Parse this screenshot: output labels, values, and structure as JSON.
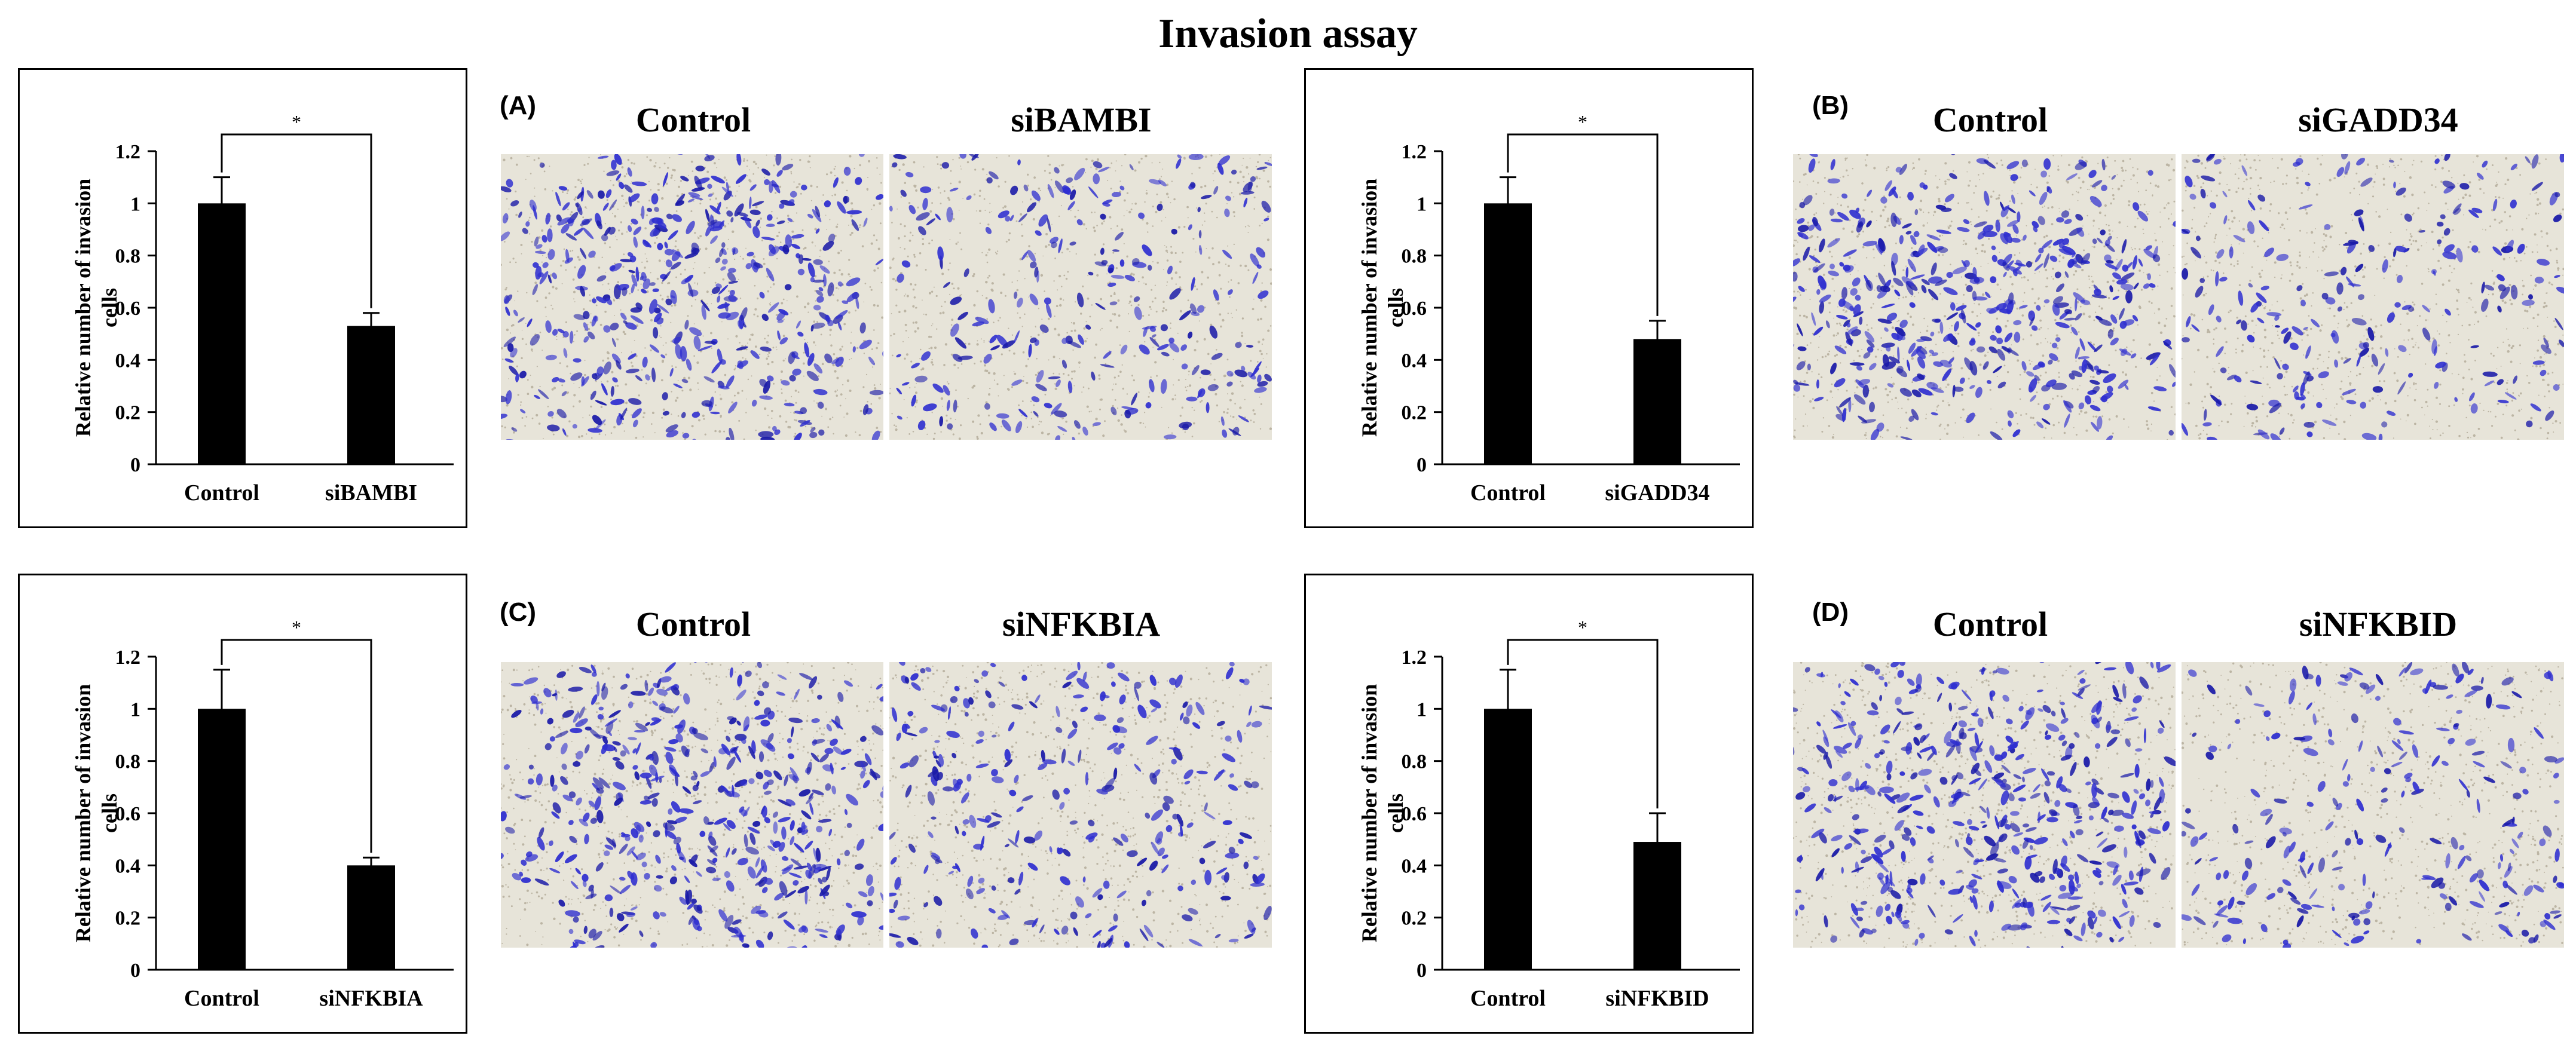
{
  "title": "Invasion assay",
  "colors": {
    "bar": "#000000",
    "cell_stain": "#2f2fd0",
    "cell_stain_dark": "#1a1aa8",
    "membrane": "#e7e4d9",
    "pore": "#9a8f7a"
  },
  "chart_data": [
    {
      "id": "A",
      "type": "bar",
      "categories": [
        "Control",
        "siBAMBI"
      ],
      "values": [
        1.0,
        0.53
      ],
      "errors": [
        0.1,
        0.05
      ],
      "ylabel": "Relative number of invasion cells",
      "ylabel_lines": [
        "Relative number of invasion",
        "cells"
      ],
      "ylim": [
        0,
        1.2
      ],
      "yticks": [
        0,
        0.2,
        0.4,
        0.6,
        0.8,
        1,
        1.2
      ],
      "annotation": "*"
    },
    {
      "id": "B",
      "type": "bar",
      "categories": [
        "Control",
        "siGADD34"
      ],
      "values": [
        1.0,
        0.48
      ],
      "errors": [
        0.1,
        0.07
      ],
      "ylabel": "Relative number of invasion cells",
      "ylabel_lines": [
        "Relative number of invasion",
        "cells"
      ],
      "ylim": [
        0,
        1.2
      ],
      "yticks": [
        0,
        0.2,
        0.4,
        0.6,
        0.8,
        1,
        1.2
      ],
      "annotation": "*"
    },
    {
      "id": "C",
      "type": "bar",
      "categories": [
        "Control",
        "siNFKBIA"
      ],
      "values": [
        1.0,
        0.4
      ],
      "errors": [
        0.15,
        0.03
      ],
      "ylabel": "Relative number of invasion cells",
      "ylabel_lines": [
        "Relative number of invasion",
        "cells"
      ],
      "ylim": [
        0,
        1.2
      ],
      "yticks": [
        0,
        0.2,
        0.4,
        0.6,
        0.8,
        1,
        1.2
      ],
      "annotation": "*"
    },
    {
      "id": "D",
      "type": "bar",
      "categories": [
        "Control",
        "siNFKBID"
      ],
      "values": [
        1.0,
        0.49
      ],
      "errors": [
        0.15,
        0.11
      ],
      "ylabel": "Relative number of invasion cells",
      "ylabel_lines": [
        "Relative number of invasion",
        "cells"
      ],
      "ylim": [
        0,
        1.2
      ],
      "yticks": [
        0,
        0.2,
        0.4,
        0.6,
        0.8,
        1,
        1.2
      ],
      "annotation": "*"
    }
  ],
  "panels": {
    "A": {
      "label": "(A)",
      "control_label": "Control",
      "treatment_label": "siBAMBI",
      "control_density": 1.0,
      "treatment_density": 0.5
    },
    "B": {
      "label": "(B)",
      "control_label": "Control",
      "treatment_label": "siGADD34",
      "control_density": 1.0,
      "treatment_density": 0.45
    },
    "C": {
      "label": "(C)",
      "control_label": "Control",
      "treatment_label": "siNFKBIA",
      "control_density": 1.0,
      "treatment_density": 0.55
    },
    "D": {
      "label": "(D)",
      "control_label": "Control",
      "treatment_label": "siNFKBID",
      "control_density": 1.0,
      "treatment_density": 0.45
    }
  }
}
